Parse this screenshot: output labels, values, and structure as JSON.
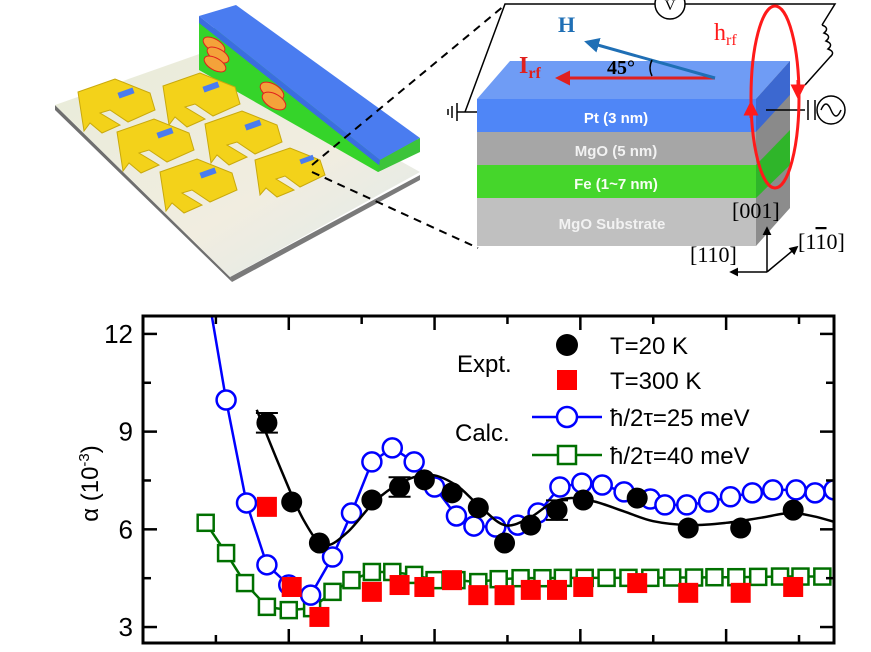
{
  "illustration": {
    "device_label": "3D device schematic with U-shaped gold electrodes on substrate",
    "layers": [
      {
        "name": "Pt",
        "label": "Pt  (3 nm)",
        "color": "#4f86f7"
      },
      {
        "name": "MgO",
        "label": "MgO  (5 nm)",
        "color": "#a6a6a6"
      },
      {
        "name": "Fe",
        "label": "Fe (1~7 nm)",
        "color": "#45d62b"
      },
      {
        "name": "MgO Substrate",
        "label": "MgO Substrate",
        "color": "#c0c0c0"
      }
    ],
    "labels": {
      "H": "H",
      "Irf": "I",
      "Irf_sub": "rf",
      "hrf": "h",
      "hrf_sub": "rf",
      "angle": "45°",
      "voltmeter": "V",
      "dir_001": "[001]",
      "dir_110": "[110]",
      "dir_1m10_a": "[1",
      "dir_1m10_bar": "1",
      "dir_1m10_b": "0]"
    },
    "colors": {
      "H": "#1f6fb5",
      "Irf": "#e0201e",
      "hrf": "#ff1a1a",
      "gold": "#f3d21a"
    }
  },
  "chart_data": {
    "type": "scatter",
    "title": "",
    "xlabel": "",
    "ylabel": "α (10",
    "ylabel_sup": "-3",
    "ylabel_close": ")",
    "xlim": [
      0,
      4.74
    ],
    "ylim": [
      2.51,
      12.55
    ],
    "x_major_ticks": [
      1,
      2,
      3,
      4
    ],
    "x_minor_ticks": [
      0.5,
      1.5,
      2.5,
      3.5,
      4.5
    ],
    "x_tick_labels_visible": false,
    "y_major_ticks": [
      3,
      6,
      9,
      12
    ],
    "y_minor_ticks": [
      4.5,
      7.5,
      10.5
    ],
    "y_tick_labels": [
      "3",
      "6",
      "9",
      "12"
    ],
    "grid": false,
    "legend": {
      "placement": "top-right",
      "group_labels": [
        "Expt.",
        "Calc."
      ],
      "entries": [
        {
          "label": "T=20 K",
          "marker": "filled-circle",
          "color": "#000000"
        },
        {
          "label": "T=300 K",
          "marker": "filled-square",
          "color": "#ff0000"
        },
        {
          "label": "ħ/2τ=25 meV",
          "marker": "open-circle-line",
          "color": "#0000ff"
        },
        {
          "label": "ħ/2τ=40 meV",
          "marker": "open-square-line",
          "color": "#007000"
        }
      ]
    },
    "series": [
      {
        "name": "T=20 K",
        "group": "Expt.",
        "marker": "filled-circle",
        "color": "#000000",
        "error_bars_at_index": [
          0,
          4,
          10
        ],
        "error": 0.3,
        "x": [
          0.85,
          1.02,
          1.21,
          1.57,
          1.76,
          1.93,
          2.12,
          2.3,
          2.48,
          2.66,
          2.84,
          3.02,
          3.39,
          3.74,
          4.1,
          4.46
        ],
        "y": [
          9.27,
          6.84,
          5.58,
          6.9,
          7.3,
          7.52,
          7.12,
          6.66,
          5.58,
          6.13,
          6.59,
          6.9,
          6.96,
          6.04,
          6.04,
          6.59
        ]
      },
      {
        "name": "T=300 K",
        "group": "Expt.",
        "marker": "filled-square",
        "color": "#ff0000",
        "x": [
          0.85,
          1.02,
          1.21,
          1.57,
          1.76,
          1.93,
          2.12,
          2.3,
          2.48,
          2.66,
          2.84,
          3.02,
          3.39,
          3.74,
          4.1,
          4.46
        ],
        "y": [
          6.69,
          4.23,
          3.31,
          4.08,
          4.29,
          4.23,
          4.44,
          3.98,
          3.98,
          4.14,
          4.14,
          4.23,
          4.35,
          4.05,
          4.05,
          4.23
        ]
      },
      {
        "name": "ħ/2τ=25 meV",
        "group": "Calc.",
        "marker": "open-circle",
        "line": true,
        "color": "#0000ff",
        "x": [
          0.47,
          0.57,
          0.71,
          0.85,
          1.0,
          1.15,
          1.3,
          1.43,
          1.57,
          1.71,
          1.86,
          2.0,
          2.15,
          2.27,
          2.42,
          2.57,
          2.71,
          2.86,
          3.01,
          3.15,
          3.3,
          3.48,
          3.58,
          3.73,
          3.88,
          4.03,
          4.18,
          4.32,
          4.48,
          4.61,
          4.74
        ],
        "y": [
          12.6,
          9.97,
          6.81,
          4.91,
          4.29,
          3.98,
          5.15,
          6.5,
          8.07,
          8.5,
          8.07,
          7.3,
          6.41,
          6.1,
          6.07,
          6.13,
          6.5,
          7.3,
          7.42,
          7.36,
          7.15,
          6.93,
          6.75,
          6.75,
          6.84,
          7.0,
          7.12,
          7.21,
          7.21,
          7.12,
          7.21
        ],
        "first_point_marker_hidden": true
      },
      {
        "name": "ħ/2τ=40 meV",
        "group": "Calc.",
        "marker": "open-square",
        "line": true,
        "color": "#007000",
        "x": [
          0.43,
          0.57,
          0.7,
          0.85,
          1.0,
          1.16,
          1.3,
          1.43,
          1.57,
          1.71,
          1.86,
          2.0,
          2.15,
          2.3,
          2.44,
          2.59,
          2.74,
          2.88,
          3.03,
          3.18,
          3.33,
          3.48,
          3.63,
          3.78,
          3.92,
          4.07,
          4.22,
          4.37,
          4.51,
          4.66
        ],
        "y": [
          6.2,
          5.27,
          4.35,
          3.62,
          3.52,
          3.58,
          4.08,
          4.44,
          4.69,
          4.69,
          4.6,
          4.44,
          4.44,
          4.38,
          4.47,
          4.5,
          4.5,
          4.51,
          4.51,
          4.51,
          4.51,
          4.51,
          4.52,
          4.52,
          4.53,
          4.53,
          4.54,
          4.55,
          4.55,
          4.55
        ]
      },
      {
        "name": "T=20 K fit",
        "group": "Expt.",
        "marker": "none",
        "line": true,
        "smooth": true,
        "color": "#000000",
        "x": [
          0.78,
          0.95,
          1.1,
          1.24,
          1.4,
          1.6,
          1.8,
          1.98,
          2.15,
          2.3,
          2.48,
          2.65,
          2.8,
          2.93,
          3.1,
          3.3,
          3.5,
          3.75,
          4.0,
          4.23,
          4.44,
          4.6,
          4.74
        ],
        "y": [
          9.67,
          7.8,
          6.3,
          5.52,
          5.9,
          6.9,
          7.5,
          7.67,
          7.35,
          6.75,
          6.13,
          6.35,
          6.8,
          6.96,
          6.85,
          6.55,
          6.25,
          6.13,
          6.2,
          6.35,
          6.5,
          6.4,
          6.23
        ]
      }
    ]
  }
}
